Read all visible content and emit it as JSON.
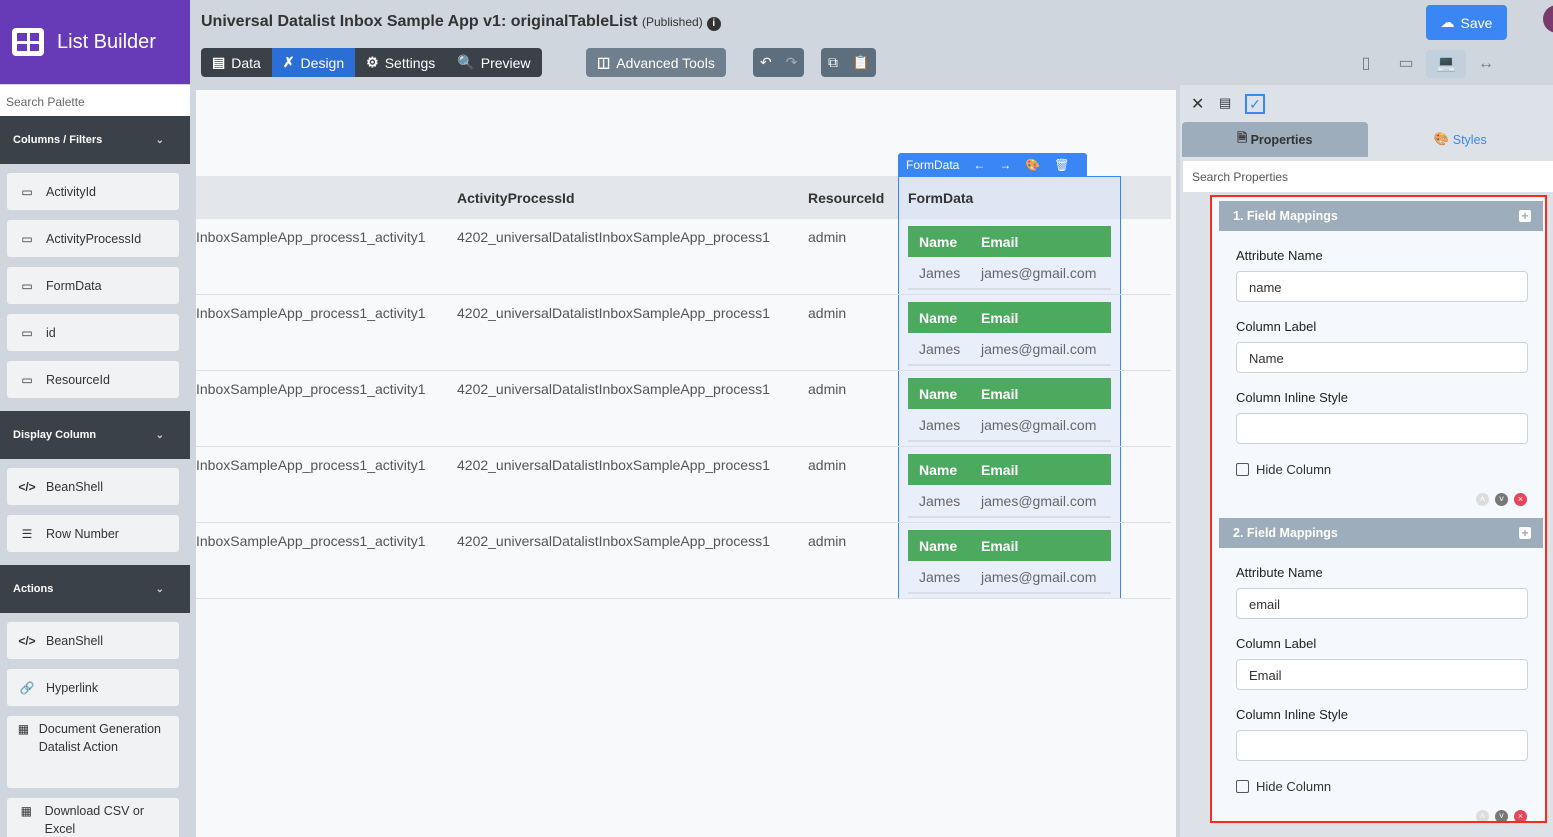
{
  "app": {
    "name": "List Builder",
    "title": "Universal Datalist Inbox Sample App v1: originalTableList",
    "status": "(Published)"
  },
  "toolbar": {
    "tabs": [
      "Data",
      "Design",
      "Settings",
      "Preview"
    ],
    "active": "Design",
    "advanced": "Advanced Tools",
    "save": "Save"
  },
  "sidebar": {
    "search_placeholder": "Search Palette",
    "sections": [
      {
        "title": "Columns / Filters",
        "items": [
          "ActivityId",
          "ActivityProcessId",
          "FormData",
          "id",
          "ResourceId"
        ]
      },
      {
        "title": "Display Column",
        "items": [
          "BeanShell",
          "Row Number"
        ]
      },
      {
        "title": "Actions",
        "items": [
          "BeanShell",
          "Hyperlink",
          "Document Generation Datalist Action",
          "Download CSV or Excel"
        ]
      }
    ]
  },
  "table": {
    "headers": [
      "",
      "ActivityProcessId",
      "ResourceId",
      "FormData"
    ],
    "rows": [
      {
        "c1": "InboxSampleApp_process1_activity1",
        "c2": "4202_universalDatalistInboxSampleApp_process1",
        "c3": "admin",
        "name": "James",
        "email": "james@gmail.com"
      },
      {
        "c1": "InboxSampleApp_process1_activity1",
        "c2": "4202_universalDatalistInboxSampleApp_process1",
        "c3": "admin",
        "name": "James",
        "email": "james@gmail.com"
      },
      {
        "c1": "InboxSampleApp_process1_activity1",
        "c2": "4202_universalDatalistInboxSampleApp_process1",
        "c3": "admin",
        "name": "James",
        "email": "james@gmail.com"
      },
      {
        "c1": "InboxSampleApp_process1_activity1",
        "c2": "4202_universalDatalistInboxSampleApp_process1",
        "c3": "admin",
        "name": "James",
        "email": "james@gmail.com"
      },
      {
        "c1": "InboxSampleApp_process1_activity1",
        "c2": "4202_universalDatalistInboxSampleApp_process1",
        "c3": "admin",
        "name": "James",
        "email": "james@gmail.com"
      }
    ],
    "mini_headers": [
      "Name",
      "Email"
    ],
    "selected_label": "FormData"
  },
  "panel": {
    "tabs": [
      "Properties",
      "Styles"
    ],
    "search_placeholder": "Search Properties",
    "labels": {
      "attr": "Attribute Name",
      "col": "Column Label",
      "style": "Column Inline Style",
      "hide": "Hide Column"
    },
    "mappings": [
      {
        "title": "1. Field Mappings",
        "attr": "name",
        "label": "Name",
        "style": ""
      },
      {
        "title": "2. Field Mappings",
        "attr": "email",
        "label": "Email",
        "style": ""
      }
    ]
  },
  "colors": {
    "brand": "#673ab7",
    "accent": "#3a86f5",
    "mini_header": "#4caa5f",
    "highlight": "#ff2a1a"
  }
}
